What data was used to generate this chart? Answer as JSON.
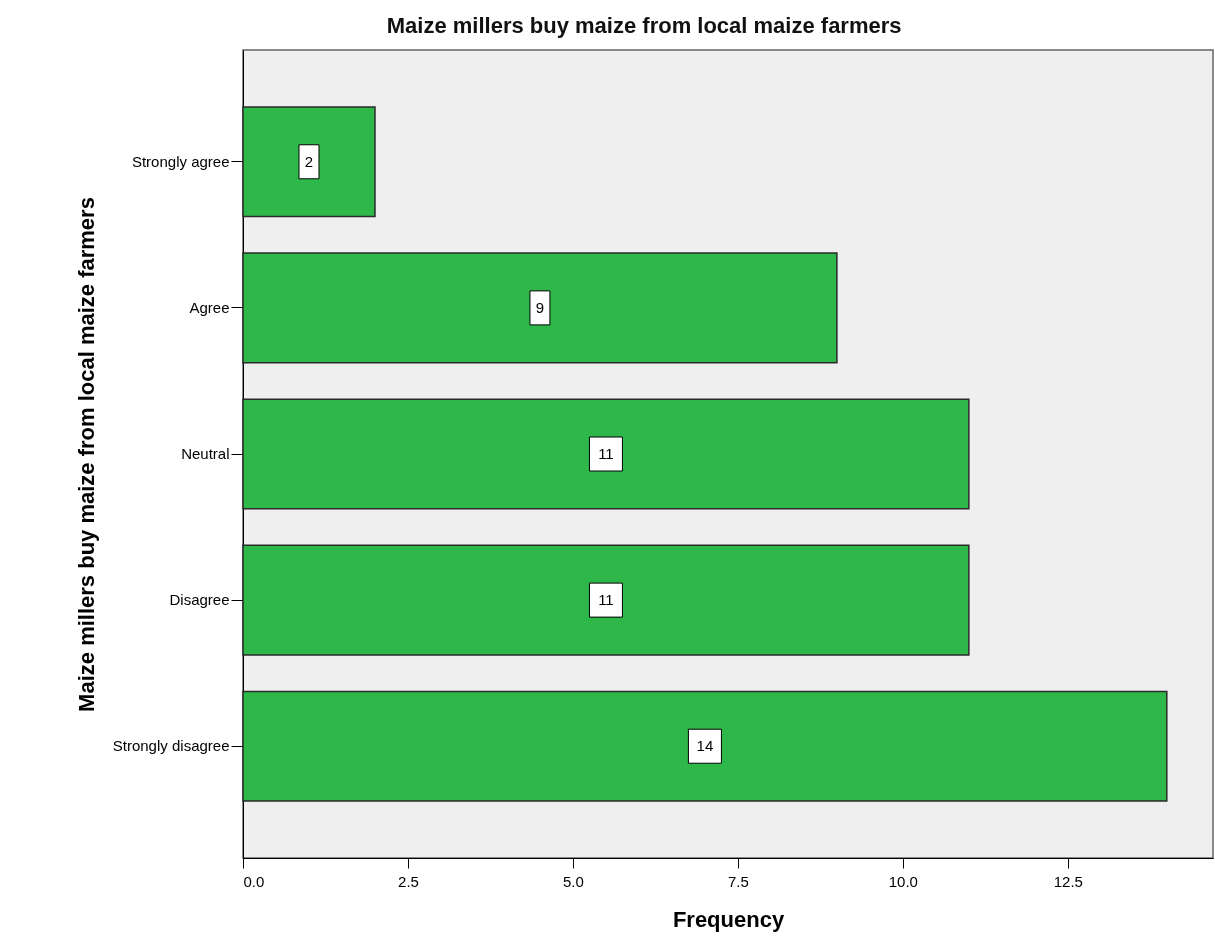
{
  "chart_data": {
    "type": "bar",
    "orientation": "horizontal",
    "title": "Maize millers buy maize from local maize farmers",
    "xlabel": "Frequency",
    "ylabel": "Maize millers buy maize from local maize farmers",
    "categories": [
      "Strongly agree",
      "Agree",
      "Neutral",
      "Disagree",
      "Strongly disagree"
    ],
    "values": [
      2,
      9,
      11,
      11,
      14
    ],
    "color": "#2fb84a",
    "xlim": [
      0,
      14.7
    ],
    "xticks": [
      {
        "value": 0,
        "label": "0.0"
      },
      {
        "value": 2.5,
        "label": "2.5"
      },
      {
        "value": 5,
        "label": "5.0"
      },
      {
        "value": 7.5,
        "label": "7.5"
      },
      {
        "value": 10,
        "label": "10.0"
      },
      {
        "value": 12.5,
        "label": "12.5"
      }
    ],
    "data_labels": true
  }
}
